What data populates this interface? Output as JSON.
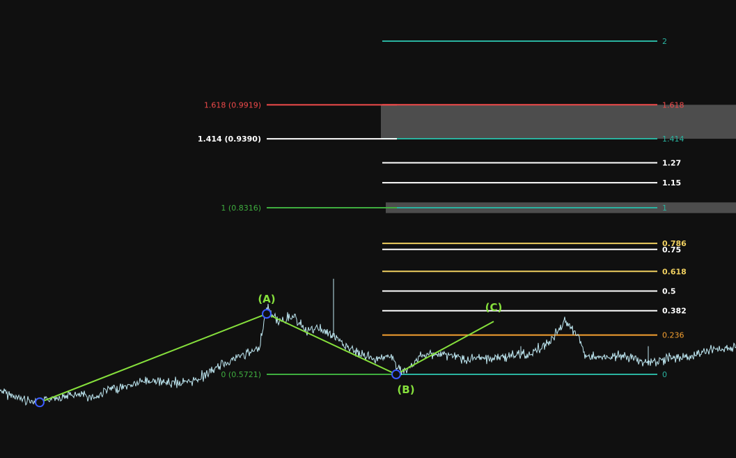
{
  "chart_data": {
    "type": "line",
    "instrument": "",
    "colors": {
      "background": "#101010",
      "price": "#bfe8f2",
      "wave": "#86e03c",
      "points": "#3b5cff"
    },
    "price_series": {
      "name": "",
      "waypoints": [
        [
          0,
          0.547
        ],
        [
          13,
          0.54
        ],
        [
          30,
          0.534
        ],
        [
          57,
          0.5285
        ],
        [
          75,
          0.535
        ],
        [
          100,
          0.54
        ],
        [
          140,
          0.537
        ],
        [
          150,
          0.547
        ],
        [
          175,
          0.552
        ],
        [
          210,
          0.562
        ],
        [
          240,
          0.559
        ],
        [
          270,
          0.559
        ],
        [
          300,
          0.574
        ],
        [
          330,
          0.594
        ],
        [
          355,
          0.604
        ],
        [
          372,
          0.612
        ],
        [
          383,
          0.675
        ],
        [
          400,
          0.655
        ],
        [
          420,
          0.662
        ],
        [
          440,
          0.641
        ],
        [
          460,
          0.643
        ],
        [
          480,
          0.63
        ],
        [
          500,
          0.613
        ],
        [
          520,
          0.602
        ],
        [
          540,
          0.597
        ],
        [
          560,
          0.6
        ],
        [
          580,
          0.5721
        ],
        [
          600,
          0.597
        ],
        [
          620,
          0.604
        ],
        [
          645,
          0.602
        ],
        [
          670,
          0.594
        ],
        [
          700,
          0.597
        ],
        [
          730,
          0.6
        ],
        [
          760,
          0.604
        ],
        [
          790,
          0.622
        ],
        [
          810,
          0.655
        ],
        [
          830,
          0.633
        ],
        [
          840,
          0.602
        ],
        [
          870,
          0.597
        ],
        [
          890,
          0.6
        ],
        [
          910,
          0.597
        ],
        [
          930,
          0.59
        ],
        [
          960,
          0.597
        ],
        [
          990,
          0.6
        ],
        [
          1020,
          0.611
        ],
        [
          1057,
          0.614
        ]
      ],
      "spikes": [
        [
          479,
          0.721
        ],
        [
          748,
          0.616
        ],
        [
          931,
          0.616
        ]
      ]
    },
    "wave_points": [
      {
        "label": "",
        "x": 57,
        "price": 0.5285,
        "marker": true
      },
      {
        "label": "(A)",
        "x": 383,
        "price": 0.6664,
        "marker": true
      },
      {
        "label": "(B)",
        "x": 569,
        "price": 0.5721,
        "marker": true
      },
      {
        "label": "(C)",
        "x": 709,
        "price": 0.6545,
        "marker": false
      }
    ],
    "left_fib": {
      "levels": [
        {
          "label": "1.618 (0.9919)",
          "price": 0.9919,
          "color": "#f04a4a",
          "bold": false
        },
        {
          "label": "1.414 (0.9390)",
          "price": 0.939,
          "color": "#ffffff",
          "bold": true
        },
        {
          "label": "1 (0.8316)",
          "price": 0.8316,
          "color": "#3fae3f",
          "bold": false
        },
        {
          "label": "0 (0.5721)",
          "price": 0.5721,
          "color": "#3fae3f",
          "bold": false
        }
      ]
    },
    "right_fib": {
      "levels": [
        {
          "label": "2",
          "value": 2,
          "color": "#2ab3a0",
          "bold": false
        },
        {
          "label": "1.618",
          "value": 1.618,
          "color": "#f04a4a",
          "bold": false
        },
        {
          "label": "1.414",
          "value": 1.414,
          "color": "#2ab3a0",
          "bold": false
        },
        {
          "label": "1.27",
          "value": 1.27,
          "color": "#ffffff",
          "bold": true
        },
        {
          "label": "1.15",
          "value": 1.15,
          "color": "#ffffff",
          "bold": true
        },
        {
          "label": "1",
          "value": 1,
          "color": "#2ab3a0",
          "bold": false
        },
        {
          "label": "0.786",
          "value": 0.786,
          "color": "#f0d060",
          "bold": true
        },
        {
          "label": "0.75",
          "value": 0.75,
          "color": "#ffffff",
          "bold": true
        },
        {
          "label": "0.618",
          "value": 0.618,
          "color": "#f0d060",
          "bold": true
        },
        {
          "label": "0.5",
          "value": 0.5,
          "color": "#ffffff",
          "bold": true
        },
        {
          "label": "0.382",
          "value": 0.382,
          "color": "#ffffff",
          "bold": true
        },
        {
          "label": "0.236",
          "value": 0.236,
          "color": "#f5a030",
          "bold": false
        },
        {
          "label": "0",
          "value": 0,
          "color": "#2ab3a0",
          "bold": false
        }
      ]
    },
    "zones": [
      {
        "from_value": 1.414,
        "to_value": 1.618,
        "color": "#4d4d4d"
      },
      {
        "from_value": 0.968,
        "to_value": 1.032,
        "color": "#4d4d4d"
      }
    ]
  }
}
